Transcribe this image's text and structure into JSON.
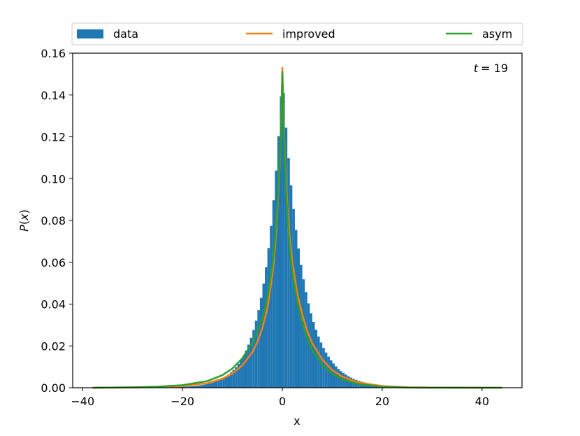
{
  "chart_data": {
    "type": "bar",
    "title": "",
    "xlabel": "x",
    "ylabel": "P(x)",
    "ylabel_math": {
      "sym": "P",
      "open": "(",
      "arg": "x",
      "close": ")"
    },
    "annotation": {
      "sym": "t",
      "rest": "= 19",
      "placement": "top-right"
    },
    "xlim": [
      -42,
      48
    ],
    "ylim": [
      0,
      0.16
    ],
    "xticks": [
      -40,
      -20,
      0,
      20,
      40
    ],
    "xtick_labels": [
      "−40",
      "−20",
      "0",
      "20",
      "40"
    ],
    "yticks": [
      0,
      0.02,
      0.04,
      0.06,
      0.08,
      0.1,
      0.12,
      0.14,
      0.16
    ],
    "ytick_labels": [
      "0.00",
      "0.02",
      "0.04",
      "0.06",
      "0.08",
      "0.10",
      "0.12",
      "0.14",
      "0.16"
    ],
    "grid": false,
    "legend": {
      "placement": "top",
      "columns": 3
    },
    "histogram": {
      "name": "data",
      "color": "#1f77b4",
      "bin_width": 0.5,
      "range": [
        -38,
        44
      ],
      "peak": 0.15,
      "peak_x": 0,
      "decay_left": 3.4,
      "decay_right": 4.0
    },
    "series": [
      {
        "name": "data",
        "kind": "histogram",
        "color": "#1f77b4"
      },
      {
        "name": "improved",
        "kind": "line",
        "color": "#ff7f0e",
        "x": [
          -38,
          -30,
          -25,
          -20,
          -15,
          -12,
          -10,
          -8,
          -6,
          -5,
          -4,
          -3,
          -2,
          -1.5,
          -1,
          -0.5,
          -0.25,
          0,
          0.25,
          0.5,
          1,
          1.5,
          2,
          3,
          4,
          5,
          6,
          8,
          10,
          12,
          15,
          20,
          25,
          30,
          44
        ],
        "y": [
          0.0,
          0.0001,
          0.0003,
          0.0008,
          0.0022,
          0.0043,
          0.0068,
          0.0107,
          0.017,
          0.0218,
          0.0285,
          0.038,
          0.054,
          0.066,
          0.084,
          0.108,
          0.127,
          0.153,
          0.13,
          0.111,
          0.087,
          0.071,
          0.06,
          0.045,
          0.035,
          0.027,
          0.0212,
          0.0134,
          0.0084,
          0.0053,
          0.0026,
          0.0008,
          0.0002,
          0.0001,
          0.0
        ]
      },
      {
        "name": "asym",
        "kind": "line",
        "color": "#2ca02c",
        "x": [
          -38,
          -30,
          -25,
          -20,
          -15,
          -12,
          -10,
          -8,
          -6,
          -5,
          -4,
          -3,
          -2,
          -1.5,
          -1,
          -0.5,
          -0.25,
          0,
          0.25,
          0.5,
          1,
          1.5,
          2,
          3,
          4,
          5,
          6,
          8,
          10,
          12,
          15,
          20,
          25,
          30,
          44
        ],
        "y": [
          0.0,
          0.0002,
          0.0005,
          0.0012,
          0.0032,
          0.006,
          0.0092,
          0.0141,
          0.0215,
          0.027,
          0.0335,
          0.0425,
          0.058,
          0.07,
          0.087,
          0.11,
          0.126,
          0.151,
          0.128,
          0.107,
          0.082,
          0.066,
          0.055,
          0.041,
          0.031,
          0.0235,
          0.018,
          0.0108,
          0.0066,
          0.004,
          0.0019,
          0.0005,
          0.0001,
          0.0,
          0.0
        ]
      }
    ]
  }
}
